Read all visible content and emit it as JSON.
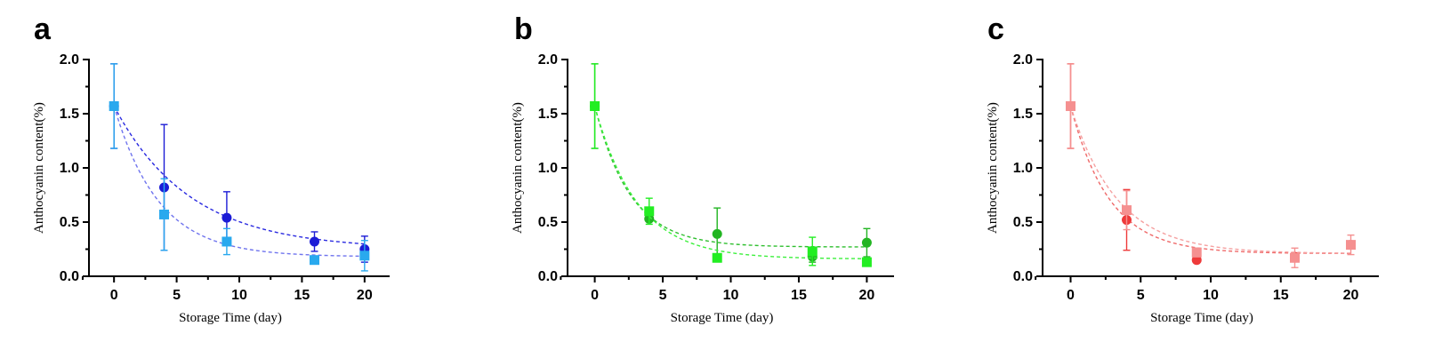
{
  "chart_data": [
    {
      "type": "scatter",
      "panel_label": "a",
      "xlabel": "Storage Time (day)",
      "ylabel": "Anthocyanin content(%)",
      "xlim": [
        -2,
        22
      ],
      "ylim": [
        0,
        2.0
      ],
      "x_ticks": [
        0,
        5,
        10,
        15,
        20
      ],
      "x_tick_labels": [
        "0",
        "5",
        "10",
        "15",
        "20"
      ],
      "y_ticks": [
        0.0,
        0.5,
        1.0,
        1.5,
        2.0
      ],
      "y_tick_labels": [
        "0.0",
        "0.5",
        "1.0",
        "1.5",
        "2.0"
      ],
      "grid": false,
      "series": [
        {
          "marker": "circle",
          "color": "#1c1cd6",
          "fit_color": "#2a2ae0",
          "x": [
            0,
            4,
            9,
            16,
            20
          ],
          "y": [
            1.57,
            0.82,
            0.54,
            0.32,
            0.25
          ],
          "err": [
            0.39,
            0.58,
            0.24,
            0.09,
            0.12
          ],
          "fit": {
            "model": "exponential decay",
            "plateau": 0.25,
            "span": 1.32,
            "k": 0.165
          }
        },
        {
          "marker": "square",
          "color": "#29a9ee",
          "fit_color": "#6f74ee",
          "x": [
            0,
            4,
            9,
            16,
            20
          ],
          "y": [
            1.57,
            0.57,
            0.32,
            0.15,
            0.19
          ],
          "err": [
            0.39,
            0.33,
            0.12,
            0.0,
            0.14
          ],
          "fit": {
            "model": "exponential decay",
            "plateau": 0.18,
            "span": 1.39,
            "k": 0.28
          }
        }
      ]
    },
    {
      "type": "scatter",
      "panel_label": "b",
      "xlabel": "Storage Time (day)",
      "ylabel": "Anthocyanin content(%)",
      "xlim": [
        -2,
        22
      ],
      "ylim": [
        0,
        2.0
      ],
      "x_ticks": [
        0,
        5,
        10,
        15,
        20
      ],
      "x_tick_labels": [
        "0",
        "5",
        "10",
        "15",
        "20"
      ],
      "y_ticks": [
        0.0,
        0.5,
        1.0,
        1.5,
        2.0
      ],
      "y_tick_labels": [
        "0.0",
        "0.5",
        "1.0",
        "1.5",
        "2.0"
      ],
      "grid": false,
      "series": [
        {
          "marker": "circle",
          "color": "#22b522",
          "fit_color": "#2fbf2f",
          "x": [
            0,
            4,
            9,
            16,
            20
          ],
          "y": [
            1.57,
            0.53,
            0.39,
            0.18,
            0.31
          ],
          "err": [
            0.39,
            0.0,
            0.24,
            0.05,
            0.13
          ],
          "fit": {
            "model": "exponential decay",
            "plateau": 0.27,
            "span": 1.3,
            "k": 0.38
          }
        },
        {
          "marker": "square",
          "color": "#22ee22",
          "fit_color": "#3cf03c",
          "x": [
            0,
            4,
            9,
            16,
            20
          ],
          "y": [
            1.57,
            0.6,
            0.17,
            0.23,
            0.13
          ],
          "err": [
            0.39,
            0.12,
            0.0,
            0.13,
            0.0
          ],
          "fit": {
            "model": "exponential decay",
            "plateau": 0.16,
            "span": 1.41,
            "k": 0.32
          }
        }
      ]
    },
    {
      "type": "scatter",
      "panel_label": "c",
      "xlabel": "Storage Time (day)",
      "ylabel": "Anthocyanin content(%)",
      "xlim": [
        -2,
        22
      ],
      "ylim": [
        0,
        2.0
      ],
      "x_ticks": [
        0,
        5,
        10,
        15,
        20
      ],
      "x_tick_labels": [
        "0",
        "5",
        "10",
        "15",
        "20"
      ],
      "y_ticks": [
        0.0,
        0.5,
        1.0,
        1.5,
        2.0
      ],
      "y_tick_labels": [
        "0.0",
        "0.5",
        "1.0",
        "1.5",
        "2.0"
      ],
      "grid": false,
      "series": [
        {
          "marker": "circle",
          "color": "#ee3a3a",
          "fit_color": "#ef6a6a",
          "x": [
            0,
            4,
            9,
            16,
            20
          ],
          "y": [
            1.57,
            0.52,
            0.15,
            0.18,
            0.29
          ],
          "err": [
            0.39,
            0.28,
            0.0,
            0.03,
            0.0
          ],
          "fit": {
            "model": "exponential decay",
            "plateau": 0.21,
            "span": 1.36,
            "k": 0.36
          }
        },
        {
          "marker": "square",
          "color": "#f59090",
          "fit_color": "#f5a0a0",
          "x": [
            0,
            4,
            9,
            16,
            20
          ],
          "y": [
            1.57,
            0.61,
            0.22,
            0.17,
            0.29
          ],
          "err": [
            0.39,
            0.18,
            0.04,
            0.09,
            0.09
          ],
          "fit": {
            "model": "exponential decay",
            "plateau": 0.21,
            "span": 1.36,
            "k": 0.3
          }
        }
      ]
    }
  ]
}
